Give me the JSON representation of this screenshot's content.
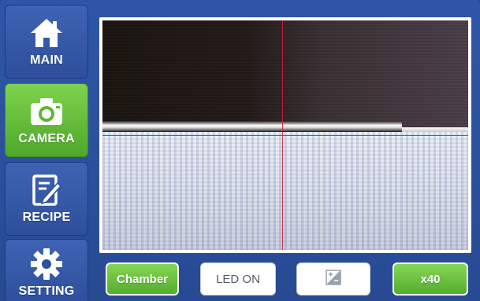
{
  "sidebar": {
    "items": [
      {
        "label": "MAIN",
        "icon": "home-icon",
        "active": false
      },
      {
        "label": "CAMERA",
        "icon": "camera-icon",
        "active": true
      },
      {
        "label": "RECIPE",
        "icon": "recipe-edit-icon",
        "active": false
      },
      {
        "label": "SETTING",
        "icon": "gear-icon",
        "active": false
      }
    ]
  },
  "toolbar": {
    "chamber_label": "Chamber",
    "led_label": "LED ON",
    "exposure_icon": "exposure-icon",
    "zoom_label": "x40"
  },
  "colors": {
    "background": "#2f56a6",
    "active_green": "#6cc23f",
    "crosshair": "#d0203a"
  }
}
